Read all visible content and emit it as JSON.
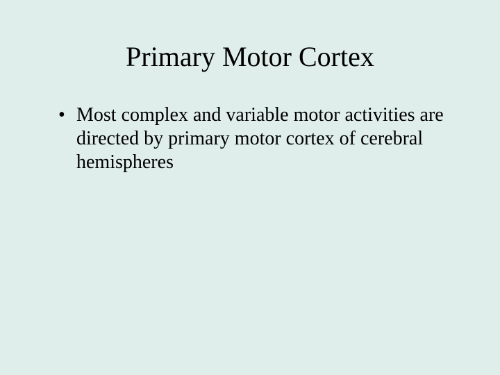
{
  "slide": {
    "background_color": "#dfeeea",
    "text_color": "#000000",
    "title": "Primary Motor Cortex",
    "title_fontsize": 40,
    "body_fontsize": 28,
    "bullets": [
      "Most complex and variable motor activities are directed by primary motor cortex of cerebral hemispheres"
    ]
  }
}
